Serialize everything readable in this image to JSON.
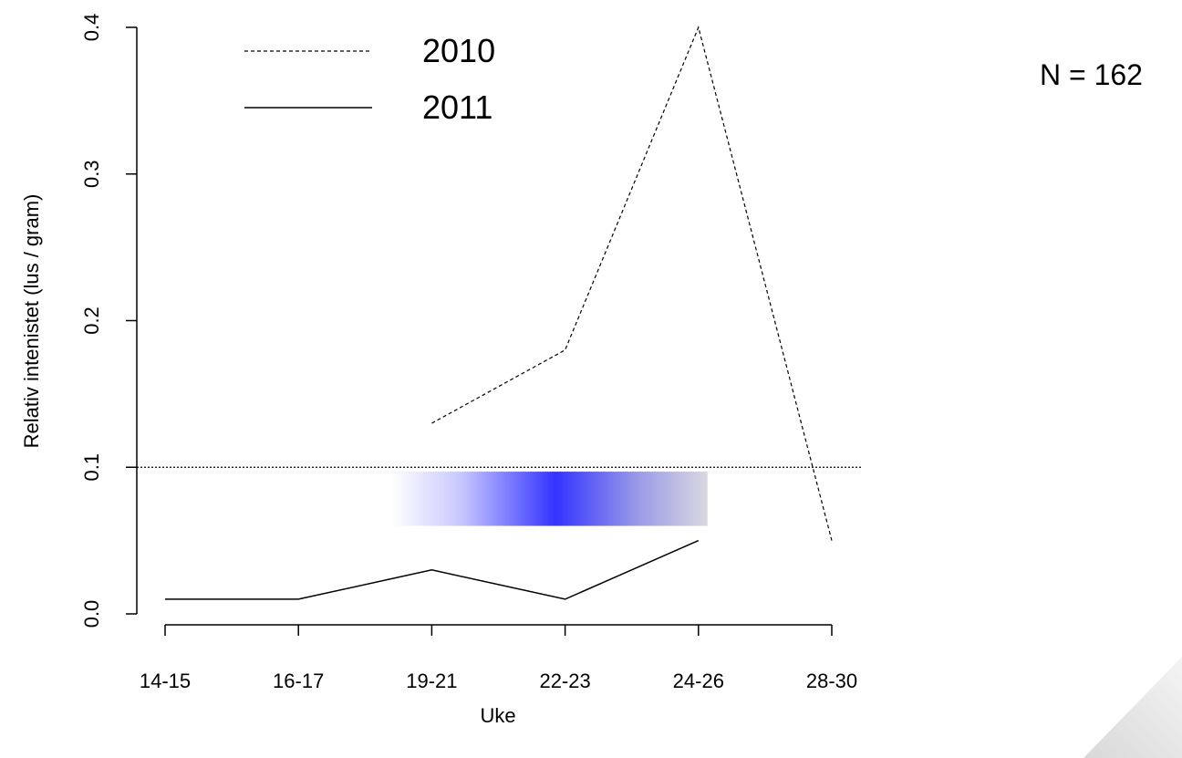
{
  "chart_data": {
    "type": "line",
    "xlabel": "Uke",
    "ylabel": "Relativ intenistet (lus / gram)",
    "categories": [
      "14-15",
      "16-17",
      "19-21",
      "22-23",
      "24-26",
      "28-30"
    ],
    "ylim": [
      0,
      0.4
    ],
    "yticks": [
      "0.0",
      "0.1",
      "0.2",
      "0.3",
      "0.4"
    ],
    "series": [
      {
        "name": "2010",
        "style": "dashed",
        "values": [
          null,
          null,
          0.13,
          0.18,
          0.4,
          0.05
        ]
      },
      {
        "name": "2011",
        "style": "solid",
        "values": [
          0.01,
          0.01,
          0.03,
          0.01,
          0.05,
          null
        ]
      }
    ],
    "reference_line": {
      "y": 0.1,
      "style": "dotted"
    },
    "gradient_band": {
      "from_category": "19-21",
      "to_category": "24-26",
      "y_range": [
        0.06,
        0.097
      ],
      "color_peak": "#3333ff",
      "color_edge": "#ffffff"
    },
    "legend": {
      "position": "top-left"
    },
    "annotation": "N = 162",
    "grid": false
  }
}
